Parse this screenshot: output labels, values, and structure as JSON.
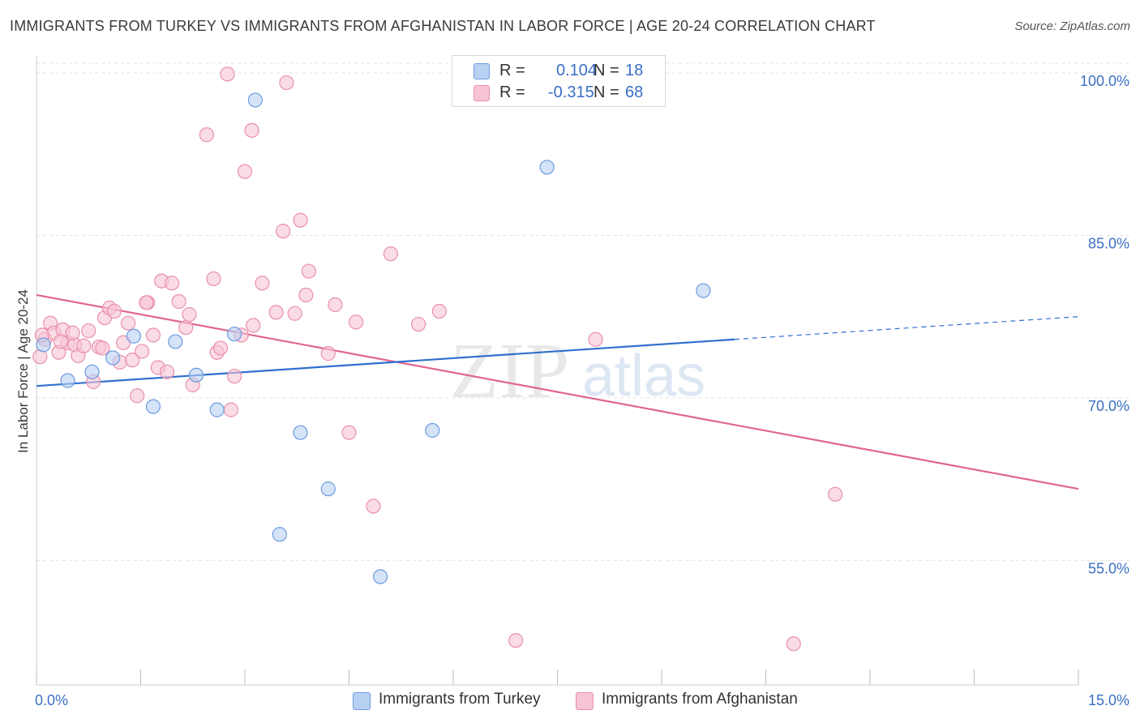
{
  "title": "IMMIGRANTS FROM TURKEY VS IMMIGRANTS FROM AFGHANISTAN IN LABOR FORCE | AGE 20-24 CORRELATION CHART",
  "source": "Source: ZipAtlas.com",
  "watermark": {
    "zip": "ZIP",
    "atlas": "atlas"
  },
  "legend": {
    "rows": [
      {
        "r_label": "R =",
        "r_value": "0.104",
        "n_label": "N =",
        "n_value": "18"
      },
      {
        "r_label": "R =",
        "r_value": "-0.315",
        "n_label": "N =",
        "n_value": "68"
      }
    ]
  },
  "colors": {
    "turkey_fill": "#b8d0f2",
    "turkey_stroke": "#6d9be0",
    "turkey_line": "#2f6fcf",
    "afghan_fill": "#f7c4d3",
    "afghan_stroke": "#ea8fab",
    "afghan_line": "#e0668f",
    "tick_label": "#3a6fc4",
    "grid": "#e3e3e3"
  },
  "chart_data": {
    "type": "scatter",
    "title": "IMMIGRANTS FROM TURKEY VS IMMIGRANTS FROM AFGHANISTAN IN LABOR FORCE | AGE 20-24 CORRELATION CHART",
    "xlabel": "",
    "ylabel": "In Labor Force | Age 20-24",
    "xlim": [
      0,
      15
    ],
    "ylim": [
      43.5,
      101.5
    ],
    "x_tick_labels": [
      {
        "value": 0,
        "label": "0.0%"
      },
      {
        "value": 15,
        "label": "15.0%"
      }
    ],
    "y_tick_labels": [
      {
        "value": 55,
        "label": "55.0%"
      },
      {
        "value": 70,
        "label": "70.0%"
      },
      {
        "value": 85,
        "label": "85.0%"
      },
      {
        "value": 100,
        "label": "100.0%"
      }
    ],
    "grid": true,
    "series": [
      {
        "name": "Immigrants from Turkey",
        "points": [
          [
            0.1,
            74.9
          ],
          [
            0.45,
            71.6
          ],
          [
            0.8,
            72.4
          ],
          [
            1.1,
            73.7
          ],
          [
            1.4,
            75.7
          ],
          [
            1.68,
            69.2
          ],
          [
            2.0,
            75.2
          ],
          [
            2.3,
            72.1
          ],
          [
            2.6,
            68.9
          ],
          [
            2.85,
            75.9
          ],
          [
            3.15,
            97.5
          ],
          [
            3.5,
            57.4
          ],
          [
            3.8,
            66.8
          ],
          [
            4.2,
            61.6
          ],
          [
            4.95,
            53.5
          ],
          [
            5.7,
            67.0
          ],
          [
            7.35,
            91.3
          ],
          [
            9.6,
            79.9
          ]
        ],
        "trend": {
          "x": [
            0,
            10.05
          ],
          "y": [
            71.1,
            75.4
          ],
          "dashed_to": [
            15,
            77.5
          ]
        }
      },
      {
        "name": "Immigrants from Afghanistan",
        "points": [
          [
            0.05,
            73.8
          ],
          [
            0.12,
            75.4
          ],
          [
            0.2,
            76.9
          ],
          [
            0.25,
            76.0
          ],
          [
            0.32,
            74.2
          ],
          [
            0.38,
            76.3
          ],
          [
            0.45,
            75.1
          ],
          [
            0.55,
            74.9
          ],
          [
            0.6,
            73.9
          ],
          [
            0.68,
            74.8
          ],
          [
            0.75,
            76.2
          ],
          [
            0.82,
            71.5
          ],
          [
            0.9,
            74.7
          ],
          [
            0.98,
            77.4
          ],
          [
            1.05,
            78.3
          ],
          [
            1.12,
            78.0
          ],
          [
            1.2,
            73.3
          ],
          [
            1.25,
            75.1
          ],
          [
            1.32,
            76.9
          ],
          [
            1.38,
            73.5
          ],
          [
            1.45,
            70.2
          ],
          [
            1.52,
            74.3
          ],
          [
            1.6,
            78.8
          ],
          [
            1.68,
            75.8
          ],
          [
            1.75,
            72.8
          ],
          [
            1.8,
            80.8
          ],
          [
            1.88,
            72.4
          ],
          [
            1.95,
            80.6
          ],
          [
            2.05,
            78.9
          ],
          [
            2.15,
            76.5
          ],
          [
            2.2,
            77.7
          ],
          [
            2.25,
            71.2
          ],
          [
            2.45,
            94.3
          ],
          [
            2.55,
            81.0
          ],
          [
            2.6,
            74.2
          ],
          [
            2.65,
            74.6
          ],
          [
            2.75,
            99.9
          ],
          [
            2.8,
            68.9
          ],
          [
            2.85,
            72.0
          ],
          [
            2.95,
            75.8
          ],
          [
            3.0,
            90.9
          ],
          [
            3.1,
            94.7
          ],
          [
            3.12,
            76.7
          ],
          [
            3.25,
            80.6
          ],
          [
            3.45,
            77.9
          ],
          [
            3.55,
            85.4
          ],
          [
            3.6,
            99.1
          ],
          [
            3.72,
            77.8
          ],
          [
            3.8,
            86.4
          ],
          [
            3.88,
            79.5
          ],
          [
            3.92,
            81.7
          ],
          [
            4.2,
            74.1
          ],
          [
            4.3,
            78.6
          ],
          [
            4.5,
            66.8
          ],
          [
            4.6,
            77.0
          ],
          [
            4.85,
            60.0
          ],
          [
            5.1,
            83.3
          ],
          [
            5.5,
            76.8
          ],
          [
            5.8,
            78.0
          ],
          [
            6.9,
            47.6
          ],
          [
            8.05,
            75.4
          ],
          [
            10.9,
            47.3
          ],
          [
            11.5,
            61.1
          ],
          [
            0.08,
            75.8
          ],
          [
            0.35,
            75.2
          ],
          [
            0.52,
            76.0
          ],
          [
            0.95,
            74.6
          ],
          [
            1.58,
            78.8
          ]
        ],
        "trend": {
          "x": [
            0,
            15
          ],
          "y": [
            79.5,
            61.6
          ]
        }
      }
    ]
  }
}
